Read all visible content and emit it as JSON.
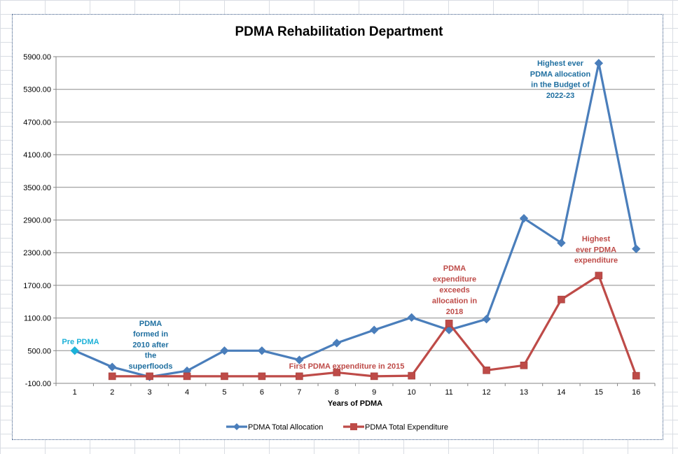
{
  "chart_data": {
    "type": "line",
    "title": "PDMA Rehabilitation Department",
    "xlabel": "Years of PDMA",
    "ylabel": "",
    "categories": [
      "1",
      "2",
      "3",
      "4",
      "5",
      "6",
      "7",
      "8",
      "9",
      "10",
      "11",
      "12",
      "13",
      "14",
      "15",
      "16"
    ],
    "ylim": [
      -100,
      5900
    ],
    "yticks": [
      "-100.00",
      "500.00",
      "1100.00",
      "1700.00",
      "2300.00",
      "2900.00",
      "3500.00",
      "4100.00",
      "4700.00",
      "5300.00",
      "5900.00"
    ],
    "grid": true,
    "legend_position": "bottom",
    "series": [
      {
        "name": "PDMA Total Allocation",
        "color": "#4a7ebb",
        "values": [
          500,
          200,
          20,
          130,
          500,
          500,
          330,
          640,
          880,
          1110,
          880,
          1080,
          2930,
          2480,
          5780,
          2370
        ]
      },
      {
        "name": "PDMA Total Expenditure",
        "color": "#be4b48",
        "values": [
          null,
          30,
          30,
          30,
          30,
          30,
          30,
          100,
          30,
          40,
          1000,
          140,
          230,
          1440,
          1880,
          40
        ]
      }
    ],
    "first_point_color": "#1cb1d8",
    "annotations": [
      {
        "color": "#1cb1d8",
        "lines": [
          "Pre PDMA"
        ]
      },
      {
        "color": "#1f6fa0",
        "lines": [
          "PDMA",
          "formed in",
          "2010 after",
          "the",
          "superfloods"
        ]
      },
      {
        "color": "#be4b48",
        "lines": [
          "First PDMA expenditure  in 2015"
        ]
      },
      {
        "color": "#be4b48",
        "lines": [
          "PDMA",
          "expenditure",
          "exceeds",
          "allocation in",
          "2018"
        ]
      },
      {
        "color": "#1f6fa0",
        "lines": [
          "Highest ever",
          "PDMA allocation",
          "in the Budget of",
          "2022-23"
        ]
      },
      {
        "color": "#be4b48",
        "lines": [
          "Highest",
          "ever PDMA",
          "expenditure"
        ]
      }
    ]
  }
}
